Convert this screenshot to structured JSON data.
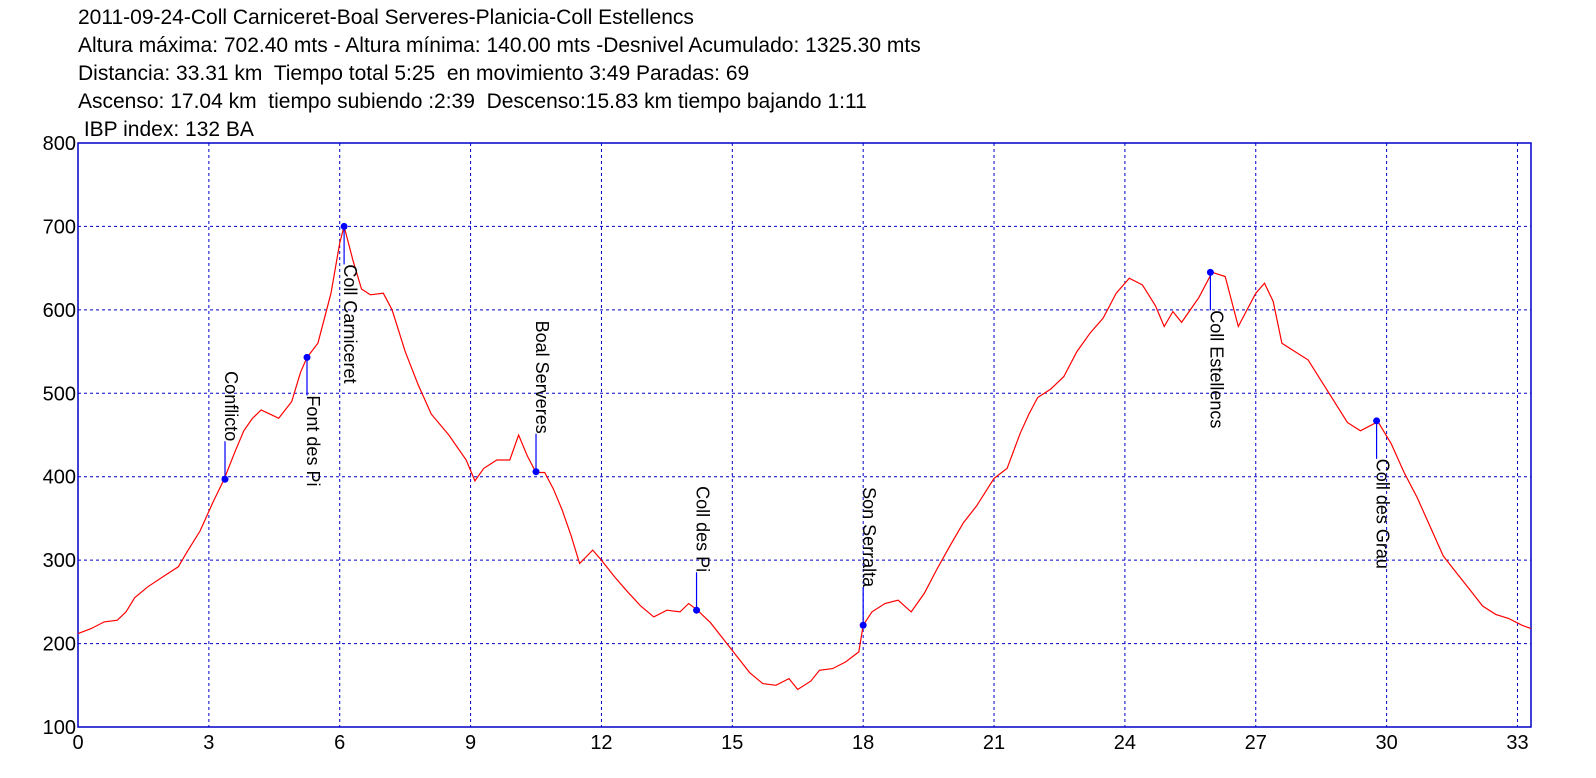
{
  "chart_data": {
    "type": "line",
    "title": "2011-09-24-Coll Carniceret-Boal Serveres-Planicia-Coll Estellencs",
    "subtitle": [
      "Altura máxima: 702.40 mts - Altura mínima: 140.00 mts -Desnivel Acumulado: 1325.30 mts",
      "Distancia: 33.31 km  Tiempo total 5:25  en movimiento 3:49 Paradas: 69",
      "Ascenso: 17.04 km  tiempo subiendo :2:39  Descenso:15.83 km tiempo bajando 1:11",
      " IBP index: 132 BA"
    ],
    "color": "#ff0000",
    "frame_color": "#0000cc",
    "grid": true,
    "grid_color": "#0000cc",
    "xlim": [
      0,
      33.31
    ],
    "ylim": [
      100,
      800
    ],
    "xticks": [
      0,
      3,
      6,
      9,
      12,
      15,
      18,
      21,
      24,
      27,
      30,
      33
    ],
    "yticks": [
      100,
      200,
      300,
      400,
      500,
      600,
      700,
      800
    ],
    "x": [
      0,
      0.3,
      0.6,
      0.9,
      1.1,
      1.3,
      1.6,
      2.0,
      2.3,
      2.5,
      2.8,
      3.1,
      3.35,
      3.6,
      3.8,
      4.0,
      4.2,
      4.4,
      4.6,
      4.9,
      5.1,
      5.25,
      5.5,
      5.8,
      6.0,
      6.1,
      6.3,
      6.5,
      6.7,
      7.0,
      7.2,
      7.5,
      7.8,
      8.1,
      8.5,
      8.9,
      9.1,
      9.3,
      9.6,
      9.9,
      10.1,
      10.3,
      10.5,
      10.7,
      10.9,
      11.1,
      11.3,
      11.5,
      11.8,
      12.0,
      12.3,
      12.6,
      12.9,
      13.2,
      13.5,
      13.8,
      14.0,
      14.2,
      14.5,
      14.8,
      15.1,
      15.4,
      15.7,
      16.0,
      16.3,
      16.5,
      16.8,
      17.0,
      17.3,
      17.6,
      17.9,
      18.0,
      18.2,
      18.5,
      18.8,
      19.1,
      19.4,
      19.7,
      20.0,
      20.3,
      20.6,
      21.0,
      21.3,
      21.6,
      21.8,
      22.0,
      22.3,
      22.6,
      22.9,
      23.2,
      23.5,
      23.8,
      24.1,
      24.4,
      24.7,
      24.9,
      25.1,
      25.3,
      25.5,
      25.7,
      26.0,
      26.3,
      26.6,
      26.8,
      27.0,
      27.2,
      27.4,
      27.6,
      27.9,
      28.2,
      28.5,
      28.8,
      29.1,
      29.4,
      29.8,
      30.1,
      30.4,
      30.7,
      31.0,
      31.3,
      31.6,
      31.9,
      32.2,
      32.5,
      32.8,
      33.1,
      33.31
    ],
    "values": [
      212,
      218,
      226,
      228,
      238,
      255,
      268,
      282,
      292,
      310,
      335,
      370,
      397,
      430,
      455,
      470,
      480,
      475,
      470,
      490,
      525,
      543,
      560,
      620,
      680,
      700,
      660,
      625,
      618,
      620,
      600,
      550,
      510,
      475,
      450,
      420,
      395,
      410,
      420,
      420,
      450,
      425,
      405,
      405,
      385,
      360,
      330,
      296,
      312,
      300,
      280,
      262,
      245,
      232,
      240,
      238,
      248,
      240,
      225,
      205,
      185,
      165,
      152,
      150,
      158,
      145,
      155,
      168,
      170,
      178,
      190,
      222,
      238,
      248,
      252,
      238,
      260,
      290,
      318,
      345,
      365,
      398,
      410,
      452,
      475,
      495,
      505,
      520,
      550,
      572,
      590,
      620,
      638,
      630,
      605,
      580,
      598,
      585,
      600,
      615,
      645,
      640,
      580,
      600,
      620,
      632,
      610,
      560,
      550,
      540,
      515,
      490,
      465,
      455,
      466,
      440,
      405,
      375,
      340,
      305,
      285,
      265,
      245,
      235,
      230,
      222,
      218
    ],
    "point_color": "#0000ff",
    "annotations": [
      {
        "text": "Conflicto",
        "x": 3.37,
        "y": 397,
        "side": "above"
      },
      {
        "text": "Font des Pi",
        "x": 5.25,
        "y": 543,
        "side": "below"
      },
      {
        "text": "Coll Carniceret",
        "x": 6.1,
        "y": 700,
        "side": "below"
      },
      {
        "text": "Boal Serveres",
        "x": 10.5,
        "y": 406,
        "side": "above"
      },
      {
        "text": "Coll des Pi",
        "x": 14.18,
        "y": 240,
        "side": "above"
      },
      {
        "text": "Son Serralta",
        "x": 18.0,
        "y": 222,
        "side": "above"
      },
      {
        "text": "Coll Estellencs",
        "x": 25.96,
        "y": 645,
        "side": "below"
      },
      {
        "text": "Coll des Grau",
        "x": 29.77,
        "y": 467,
        "side": "below"
      }
    ]
  }
}
